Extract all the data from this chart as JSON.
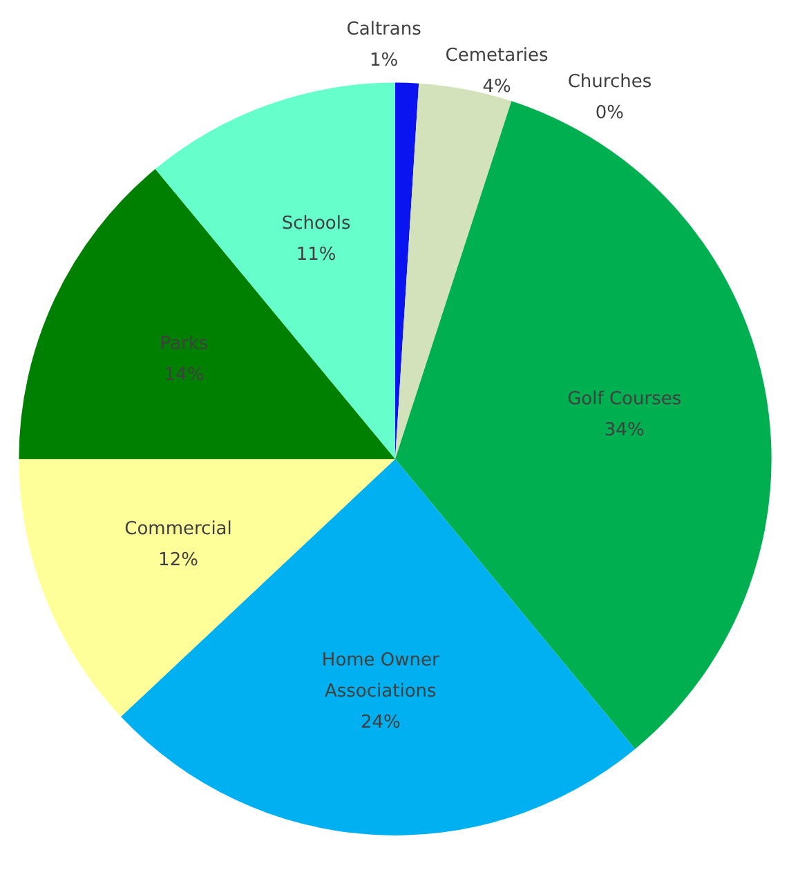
{
  "chart_data": {
    "type": "pie",
    "categories": [
      "Caltrans",
      "Cemetaries",
      "Churches",
      "Golf Courses",
      "Home Owner\nAssociations",
      "Commercial",
      "Parks",
      "Schools"
    ],
    "values": [
      1,
      4,
      0,
      34,
      24,
      12,
      14,
      11
    ],
    "value_labels": [
      "1%",
      "4%",
      "0%",
      "34%",
      "24%",
      "12%",
      "14%",
      "11%"
    ],
    "colors": [
      "#0a14f0",
      "#d4e2bb",
      "#00a651",
      "#00b050",
      "#00b0f0",
      "#ffff99",
      "#008000",
      "#66ffcc"
    ]
  }
}
